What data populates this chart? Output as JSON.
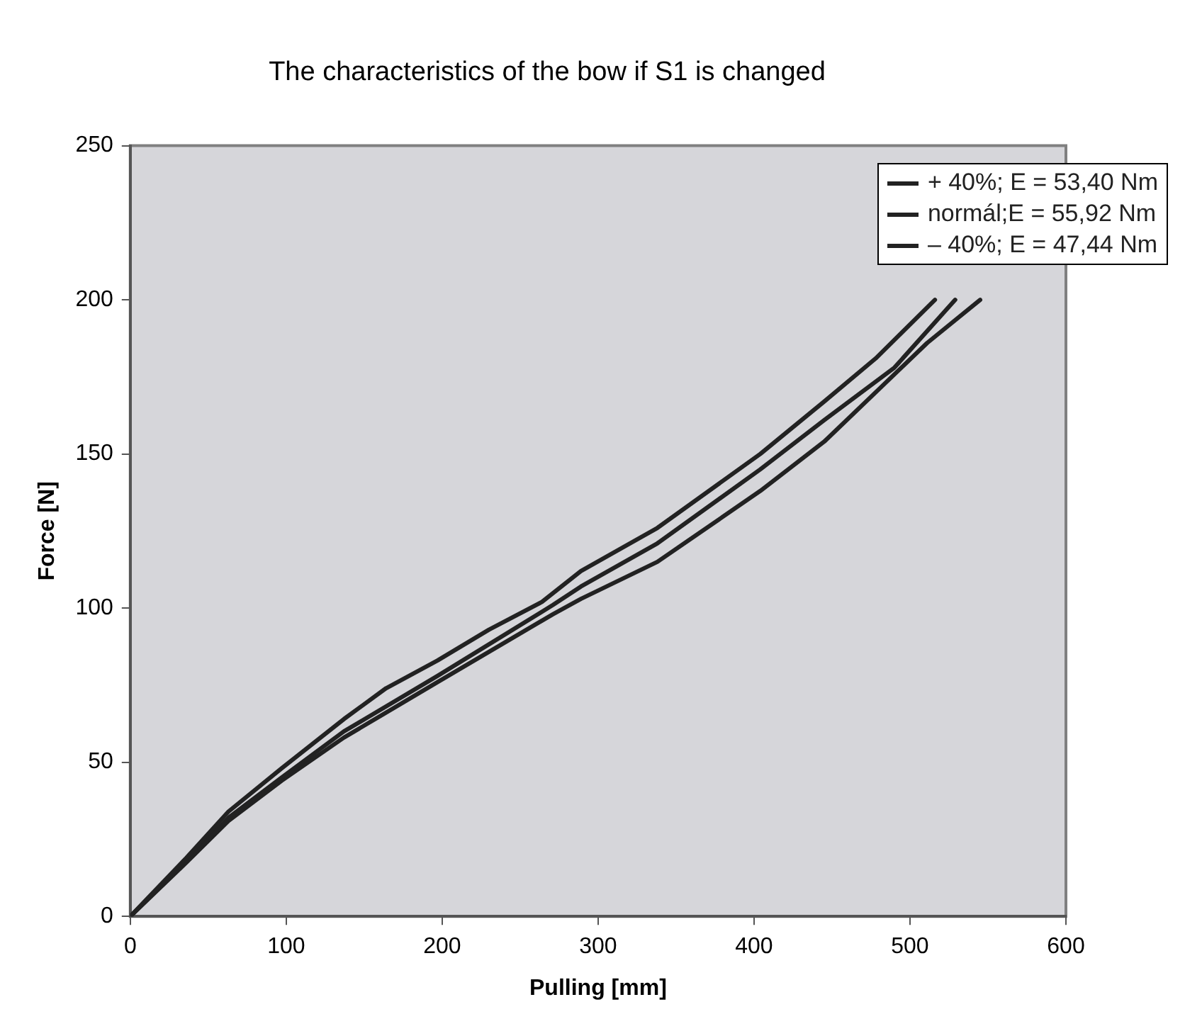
{
  "chart_data": {
    "type": "line",
    "title": "The characteristics of the bow if S1 is changed",
    "xlabel": "Pulling [mm]",
    "ylabel": "Force [N]",
    "xlim": [
      0,
      600
    ],
    "xticks": [
      0,
      100,
      200,
      300,
      400,
      500,
      600
    ],
    "ylim": [
      0,
      250
    ],
    "yticks": [
      0,
      50,
      100,
      150,
      200,
      250
    ],
    "grid": false,
    "legend": "top right",
    "marker": "none",
    "line_style": "solid",
    "series": [
      {
        "name": "+ 40%; E = 53,40 Nm",
        "color": "#222222",
        "x": [
          0,
          36,
          63,
          97,
          137,
          164,
          197,
          230,
          264,
          289,
          338,
          404,
          445,
          478,
          516
        ],
        "values": [
          0,
          19,
          34,
          48,
          64,
          74,
          83,
          93,
          102,
          112,
          126,
          150,
          167,
          181,
          200
        ]
      },
      {
        "name": "normál;E = 55,92 Nm",
        "color": "#222222",
        "x": [
          0,
          36,
          63,
          97,
          137,
          197,
          271,
          289,
          338,
          404,
          445,
          490,
          529
        ],
        "values": [
          0,
          18,
          32,
          45,
          60,
          78,
          101,
          107,
          121,
          145,
          161,
          178,
          200
        ]
      },
      {
        "name": "– 40%; E = 47,44 Nm",
        "color": "#222222",
        "x": [
          0,
          36,
          63,
          97,
          137,
          197,
          271,
          289,
          338,
          404,
          445,
          478,
          511,
          545
        ],
        "values": [
          0,
          17.5,
          31,
          44,
          58,
          76,
          98,
          103,
          115,
          138,
          154,
          170,
          186,
          200
        ]
      }
    ]
  }
}
